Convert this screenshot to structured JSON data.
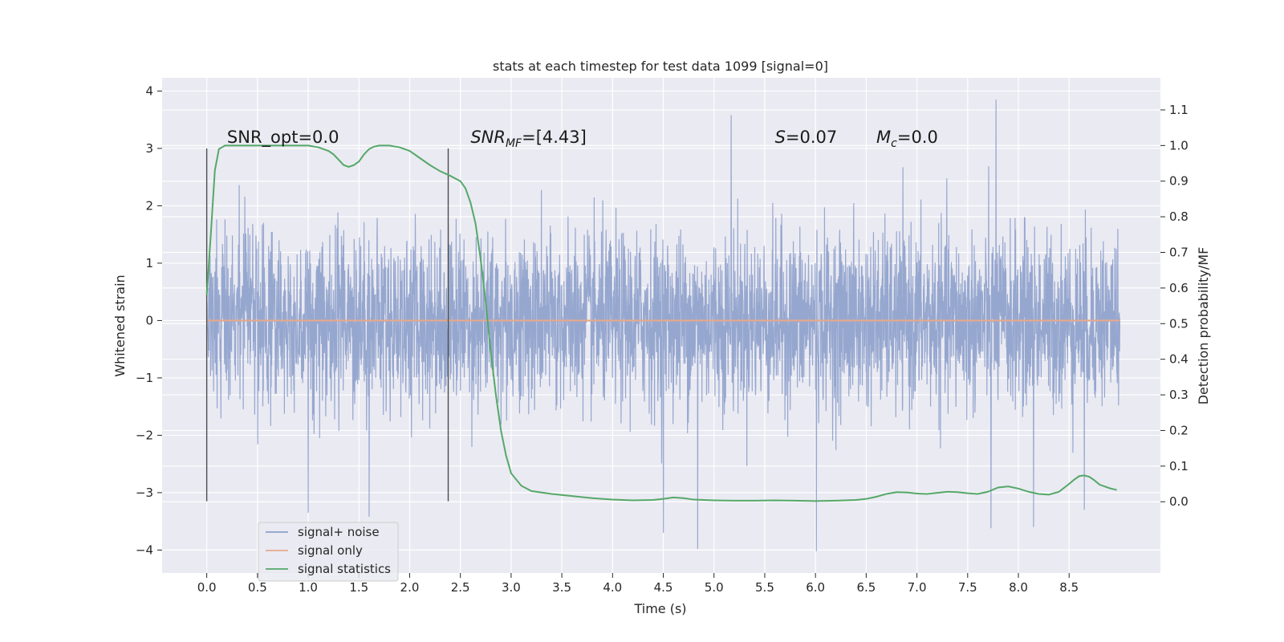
{
  "chart_data": {
    "type": "line",
    "title": "stats at each timestep for test data 1099 [signal=0]",
    "xlabel": "Time (s)",
    "ylabel": "Whitened strain",
    "ylabel_right": "Detection probability/MF",
    "xlim": [
      -0.44,
      9.4
    ],
    "ylim": [
      -4.4,
      4.23
    ],
    "ylim_right": [
      -0.2,
      1.19
    ],
    "x_ticks": [
      0.0,
      0.5,
      1.0,
      1.5,
      2.0,
      2.5,
      3.0,
      3.5,
      4.0,
      4.5,
      5.0,
      5.5,
      6.0,
      6.5,
      7.0,
      7.5,
      8.0,
      8.5
    ],
    "x_tick_labels": [
      "0.0",
      "0.5",
      "1.0",
      "1.5",
      "2.0",
      "2.5",
      "3.0",
      "3.5",
      "4.0",
      "4.5",
      "5.0",
      "5.5",
      "6.0",
      "6.5",
      "7.0",
      "7.5",
      "8.0",
      "8.5"
    ],
    "y_ticks": [
      4,
      3,
      2,
      1,
      0,
      -1,
      -2,
      -3,
      -4
    ],
    "y_tick_labels": [
      "4",
      "3",
      "2",
      "1",
      "0",
      "−1",
      "−2",
      "−3",
      "−4"
    ],
    "y_right_ticks": [
      1.1,
      1.0,
      0.9,
      0.8,
      0.7,
      0.6,
      0.5,
      0.4,
      0.3,
      0.2,
      0.1,
      0.0
    ],
    "y_right_tick_labels": [
      "1.1",
      "1.0",
      "0.9",
      "0.8",
      "0.7",
      "0.6",
      "0.5",
      "0.4",
      "0.3",
      "0.2",
      "0.1",
      "0.0"
    ],
    "grid": true,
    "legend_position": "lower-left",
    "series": [
      {
        "name": "signal+ noise",
        "color": "#8da0cb",
        "axis": "left",
        "kind": "noise",
        "x_range": [
          0.0,
          9.0
        ],
        "typical_range": [
          -1.3,
          1.2
        ],
        "notable_peaks": [
          [
            7.78,
            3.85
          ],
          [
            5.17,
            3.58
          ],
          [
            6.01,
            -4.02
          ],
          [
            4.84,
            -3.98
          ],
          [
            4.5,
            -3.7
          ],
          [
            7.73,
            -3.62
          ],
          [
            8.15,
            -3.6
          ],
          [
            1.6,
            -3.42
          ],
          [
            1.0,
            -3.35
          ],
          [
            8.65,
            -3.3
          ]
        ]
      },
      {
        "name": "signal only",
        "color": "#e5a98d",
        "axis": "left",
        "x": [
          0.0,
          9.0
        ],
        "y": [
          0.0,
          0.0
        ]
      },
      {
        "name": "signal statistics",
        "color": "#55a868",
        "axis": "right",
        "x": [
          0.0,
          0.04,
          0.08,
          0.12,
          0.18,
          0.25,
          0.35,
          0.5,
          0.7,
          0.9,
          1.0,
          1.1,
          1.2,
          1.25,
          1.3,
          1.35,
          1.4,
          1.45,
          1.5,
          1.55,
          1.6,
          1.65,
          1.7,
          1.8,
          1.9,
          2.0,
          2.1,
          2.2,
          2.3,
          2.4,
          2.5,
          2.55,
          2.6,
          2.65,
          2.7,
          2.75,
          2.8,
          2.85,
          2.9,
          2.95,
          3.0,
          3.1,
          3.2,
          3.4,
          3.6,
          3.8,
          4.0,
          4.2,
          4.4,
          4.5,
          4.6,
          4.7,
          4.8,
          5.0,
          5.2,
          5.4,
          5.6,
          5.8,
          6.0,
          6.2,
          6.4,
          6.5,
          6.6,
          6.7,
          6.8,
          6.9,
          7.0,
          7.1,
          7.2,
          7.3,
          7.4,
          7.5,
          7.6,
          7.7,
          7.8,
          7.9,
          8.0,
          8.1,
          8.2,
          8.3,
          8.4,
          8.5,
          8.55,
          8.6,
          8.65,
          8.7,
          8.75,
          8.8,
          8.9,
          8.97
        ],
        "y": [
          0.58,
          0.75,
          0.93,
          0.99,
          1.0,
          1.0,
          1.0,
          1.0,
          1.0,
          1.0,
          1.0,
          0.995,
          0.985,
          0.975,
          0.96,
          0.945,
          0.94,
          0.945,
          0.955,
          0.975,
          0.99,
          0.997,
          1.0,
          1.0,
          0.995,
          0.985,
          0.965,
          0.945,
          0.928,
          0.915,
          0.9,
          0.88,
          0.84,
          0.78,
          0.68,
          0.56,
          0.42,
          0.3,
          0.2,
          0.13,
          0.08,
          0.045,
          0.03,
          0.022,
          0.016,
          0.01,
          0.006,
          0.004,
          0.005,
          0.008,
          0.012,
          0.01,
          0.006,
          0.004,
          0.003,
          0.003,
          0.004,
          0.003,
          0.002,
          0.003,
          0.005,
          0.008,
          0.014,
          0.022,
          0.027,
          0.026,
          0.023,
          0.022,
          0.025,
          0.028,
          0.027,
          0.024,
          0.022,
          0.028,
          0.04,
          0.043,
          0.037,
          0.028,
          0.022,
          0.02,
          0.028,
          0.05,
          0.062,
          0.072,
          0.074,
          0.07,
          0.06,
          0.048,
          0.038,
          0.033
        ]
      }
    ],
    "markers": {
      "vlines": [
        {
          "x": 0.0,
          "ymin": -3.15,
          "ymax": 3.0
        },
        {
          "x": 2.38,
          "ymin": -3.15,
          "ymax": 3.0
        }
      ]
    },
    "annotations": [
      {
        "id": "snr-opt",
        "text": "SNR_opt=0.0",
        "x": 0.2,
        "y": 3.1
      },
      {
        "id": "snr-mf",
        "text": "SNR_MF=[4.43]",
        "main": "SNR",
        "sub": "MF",
        "rest": "=[4.43]",
        "x": 2.6,
        "y": 3.1
      },
      {
        "id": "s-val",
        "text": "S=0.07",
        "main": "S",
        "rest": "=0.07",
        "x": 5.6,
        "y": 3.1
      },
      {
        "id": "mc-val",
        "text": "Mc=0.0",
        "main": "M",
        "sub": "c",
        "rest": "=0.0",
        "x": 6.6,
        "y": 3.1
      }
    ],
    "legend": [
      "signal+ noise",
      "signal only",
      "signal statistics"
    ]
  }
}
